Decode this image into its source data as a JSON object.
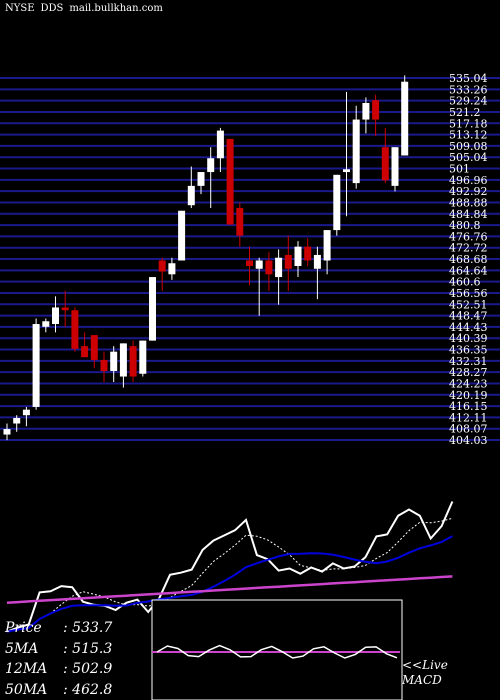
{
  "header": {
    "exchange": "NYSE",
    "ticker": "DDS",
    "site": "mail.bullkhan.com"
  },
  "legend": {
    "price": {
      "label": "Price",
      "value": ": 533.7"
    },
    "ma5": {
      "label": "5MA",
      "value": ": 515.3"
    },
    "ma12": {
      "label": "12MA",
      "value": ": 502.9"
    },
    "ma50": {
      "label": "50MA",
      "value": ": 462.8"
    }
  },
  "macd_panel": {
    "live": "<<Live",
    "title": "MACD"
  },
  "colors": {
    "up": "#ffffff",
    "down": "#cc0000",
    "grid": "#1a1a8c",
    "ma_fast": "#ffffff",
    "ma_mid": "#0000dd",
    "ma_slow": "#cc44cc",
    "macd": "#ffffff",
    "macd_signal": "#cc44cc"
  },
  "chart_data": {
    "type": "candlestick",
    "y_range": [
      404.03,
      535.04
    ],
    "price_tick_labels": [
      "535.04",
      "533.26",
      "529.24",
      "521.2",
      "517.18",
      "513.12",
      "509.08",
      "505.04",
      "501",
      "496.96",
      "492.92",
      "488.88",
      "484.84",
      "480.8",
      "476.76",
      "472.72",
      "468.68",
      "464.64",
      "460.6",
      "456.56",
      "452.51",
      "448.47",
      "444.43",
      "440.39",
      "436.35",
      "432.31",
      "428.27",
      "424.23",
      "420.19",
      "416.15",
      "412.11",
      "408.07",
      "404.03"
    ],
    "candles": [
      {
        "o": 406,
        "h": 410,
        "l": 404,
        "c": 408
      },
      {
        "o": 410,
        "h": 413,
        "l": 407,
        "c": 412
      },
      {
        "o": 413,
        "h": 416,
        "l": 409,
        "c": 415
      },
      {
        "o": 416,
        "h": 448,
        "l": 415,
        "c": 446
      },
      {
        "o": 445,
        "h": 448,
        "l": 443,
        "c": 447
      },
      {
        "o": 446,
        "h": 456,
        "l": 443,
        "c": 452
      },
      {
        "o": 452,
        "h": 458,
        "l": 445,
        "c": 451
      },
      {
        "o": 451,
        "h": 452,
        "l": 436,
        "c": 437
      },
      {
        "o": 438,
        "h": 443,
        "l": 434,
        "c": 434
      },
      {
        "o": 442,
        "h": 442,
        "l": 430,
        "c": 433
      },
      {
        "o": 433,
        "h": 436,
        "l": 425,
        "c": 429
      },
      {
        "o": 429,
        "h": 438,
        "l": 425,
        "c": 436
      },
      {
        "o": 427,
        "h": 439,
        "l": 423,
        "c": 439
      },
      {
        "o": 438,
        "h": 440,
        "l": 425,
        "c": 427
      },
      {
        "o": 428,
        "h": 440,
        "l": 427,
        "c": 440
      },
      {
        "o": 440,
        "h": 463,
        "l": 440,
        "c": 463
      },
      {
        "o": 469,
        "h": 470,
        "l": 458,
        "c": 465
      },
      {
        "o": 464,
        "h": 470,
        "l": 462,
        "c": 468
      },
      {
        "o": 469,
        "h": 487,
        "l": 469,
        "c": 487
      },
      {
        "o": 489,
        "h": 503,
        "l": 488,
        "c": 496
      },
      {
        "o": 496,
        "h": 501,
        "l": 493,
        "c": 501
      },
      {
        "o": 501,
        "h": 510,
        "l": 488,
        "c": 506
      },
      {
        "o": 506,
        "h": 517,
        "l": 501,
        "c": 516
      },
      {
        "o": 513,
        "h": 513,
        "l": 482,
        "c": 482
      },
      {
        "o": 488,
        "h": 490,
        "l": 474,
        "c": 478
      },
      {
        "o": 469,
        "h": 474,
        "l": 460,
        "c": 467
      },
      {
        "o": 466,
        "h": 470,
        "l": 449,
        "c": 469
      },
      {
        "o": 469,
        "h": 472,
        "l": 458,
        "c": 464
      },
      {
        "o": 463,
        "h": 473,
        "l": 453,
        "c": 470
      },
      {
        "o": 471,
        "h": 478,
        "l": 458,
        "c": 466
      },
      {
        "o": 467,
        "h": 476,
        "l": 463,
        "c": 474
      },
      {
        "o": 474,
        "h": 477,
        "l": 467,
        "c": 469
      },
      {
        "o": 466,
        "h": 474,
        "l": 455,
        "c": 471
      },
      {
        "o": 469,
        "h": 480,
        "l": 464,
        "c": 480
      },
      {
        "o": 480,
        "h": 500,
        "l": 478,
        "c": 500
      },
      {
        "o": 501,
        "h": 530,
        "l": 485,
        "c": 502
      },
      {
        "o": 497,
        "h": 525,
        "l": 495,
        "c": 520
      },
      {
        "o": 520,
        "h": 528,
        "l": 515,
        "c": 526
      },
      {
        "o": 527,
        "h": 529,
        "l": 514,
        "c": 520
      },
      {
        "o": 510,
        "h": 517,
        "l": 497,
        "c": 498
      },
      {
        "o": 496,
        "h": 510,
        "l": 494,
        "c": 510
      },
      {
        "o": 507,
        "h": 536,
        "l": 507,
        "c": 533.7
      }
    ]
  }
}
